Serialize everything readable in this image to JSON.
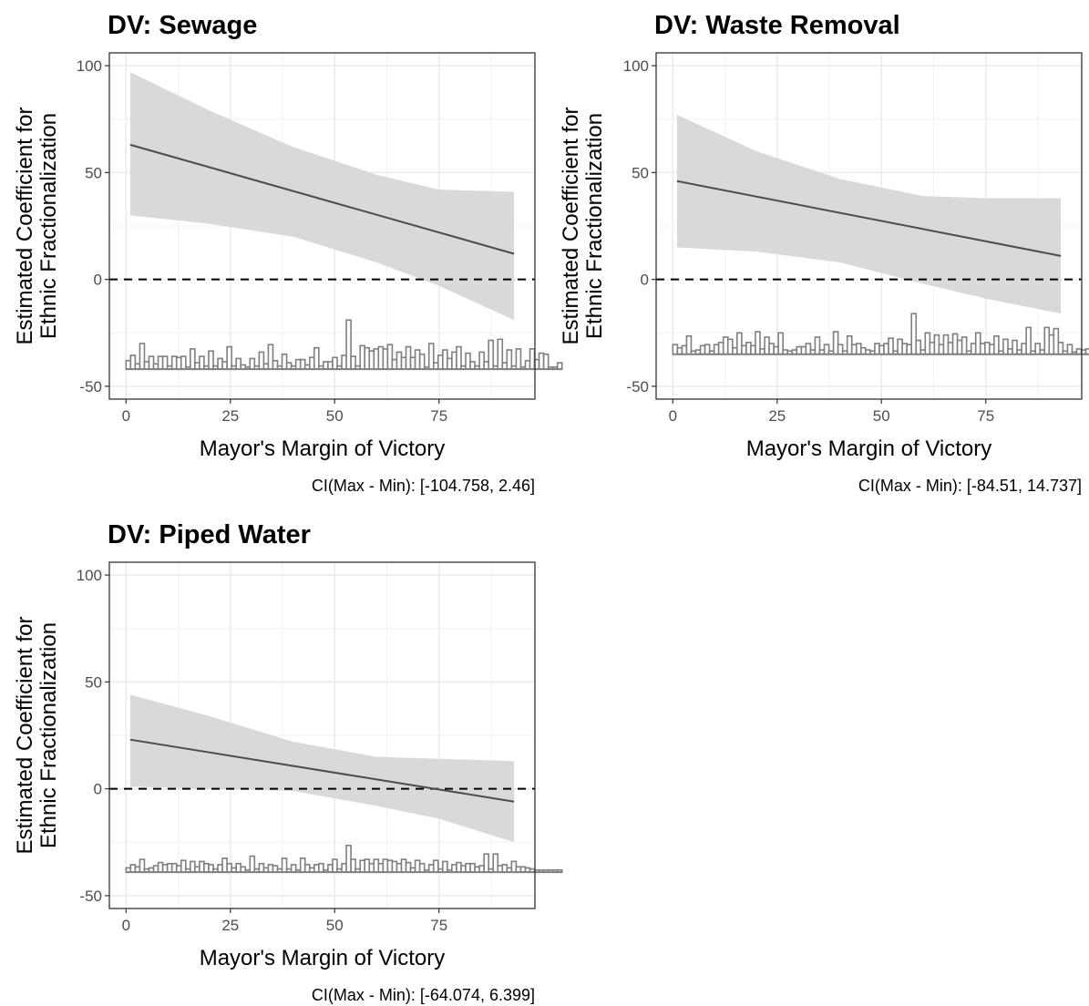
{
  "chart_data": [
    {
      "type": "line",
      "title": "DV: Sewage",
      "xlabel": "Mayor's Margin of Victory",
      "ylabel": [
        "Estimated Coefficient for",
        "Ethnic Fractionalization"
      ],
      "caption": "CI(Max - Min): [-104.758, 2.46]",
      "xlim": [
        -4,
        98
      ],
      "ylim": [
        -56,
        106
      ],
      "xticks": [
        0,
        25,
        50,
        75
      ],
      "xtick_labels": [
        "0",
        "25",
        "50",
        "75"
      ],
      "yticks": [
        -50,
        0,
        50,
        100
      ],
      "ytick_labels": [
        "-50",
        "0",
        "50",
        "100"
      ],
      "grid": true,
      "reference_line": {
        "y": 0,
        "style": "dashed"
      },
      "estimate_line": {
        "x": [
          1,
          93
        ],
        "y": [
          63,
          12
        ]
      },
      "ci_band": {
        "x": [
          1,
          20,
          40,
          60,
          75,
          93
        ],
        "lower": [
          30,
          26,
          20,
          8,
          -3,
          -19
        ],
        "upper": [
          97,
          79,
          62,
          49,
          42,
          41
        ]
      },
      "histogram": {
        "baseline": -42,
        "bin_start": 0,
        "bin_width": 1.1,
        "counts": [
          4.0,
          6.5,
          2.5,
          12.0,
          3.5,
          6.0,
          2.5,
          6.0,
          6.0,
          1.5,
          6.0,
          5.5,
          6.0,
          1.0,
          9.5,
          3.0,
          6.0,
          1.5,
          8.5,
          1.5,
          5.0,
          3.5,
          10.5,
          1.5,
          5.0,
          2.0,
          1.0,
          5.0,
          1.5,
          8.0,
          2.5,
          11.5,
          4.0,
          1.5,
          7.0,
          3.0,
          1.5,
          4.5,
          4.5,
          2.0,
          5.5,
          10.0,
          1.5,
          3.5,
          3.5,
          5.5,
          1.5,
          6.5,
          23.0,
          6.0,
          1.5,
          11.0,
          10.0,
          8.5,
          9.5,
          10.5,
          9.5,
          11.5,
          4.5,
          8.0,
          5.5,
          10.5,
          5.5,
          9.0,
          7.0,
          1.0,
          12.0,
          3.0,
          6.5,
          9.0,
          5.0,
          8.0,
          10.5,
          1.5,
          7.5,
          3.5,
          1.5,
          8.0,
          3.5,
          13.5,
          1.5,
          14.0,
          3.0,
          9.0,
          1.5,
          9.5,
          1.0,
          4.0,
          9.5,
          4.5,
          7.5,
          7.0,
          1.0,
          1.0,
          3.0
        ]
      }
    },
    {
      "type": "line",
      "title": "DV: Waste Removal",
      "xlabel": "Mayor's Margin of Victory",
      "ylabel": [
        "Estimated Coefficient for",
        "Ethnic Fractionalization"
      ],
      "caption": "CI(Max - Min): [-84.51, 14.737]",
      "xlim": [
        -4,
        98
      ],
      "ylim": [
        -56,
        106
      ],
      "xticks": [
        0,
        25,
        50,
        75
      ],
      "xtick_labels": [
        "0",
        "25",
        "50",
        "75"
      ],
      "yticks": [
        -50,
        0,
        50,
        100
      ],
      "ytick_labels": [
        "-50",
        "0",
        "50",
        "100"
      ],
      "grid": true,
      "reference_line": {
        "y": 0,
        "style": "dashed"
      },
      "estimate_line": {
        "x": [
          1,
          93
        ],
        "y": [
          46,
          11
        ]
      },
      "ci_band": {
        "x": [
          1,
          20,
          40,
          60,
          75,
          93
        ],
        "lower": [
          15,
          13,
          8,
          -2,
          -9,
          -16
        ],
        "upper": [
          77,
          60,
          47,
          39,
          38,
          38
        ]
      },
      "histogram": {
        "baseline": -35,
        "bin_start": 0,
        "bin_width": 1.1,
        "counts": [
          4.5,
          3.0,
          4.0,
          8.5,
          1.5,
          2.0,
          4.0,
          4.5,
          1.5,
          4.5,
          5.5,
          8.0,
          7.0,
          3.0,
          10.0,
          4.0,
          5.5,
          4.0,
          10.5,
          2.5,
          8.0,
          5.0,
          3.5,
          10.0,
          2.0,
          1.5,
          2.0,
          3.5,
          3.5,
          5.0,
          2.0,
          8.0,
          2.0,
          4.5,
          1.5,
          10.5,
          4.5,
          1.5,
          8.5,
          4.5,
          5.0,
          3.0,
          2.0,
          1.5,
          5.0,
          4.0,
          5.0,
          7.5,
          1.5,
          7.0,
          5.0,
          4.5,
          19.0,
          6.5,
          2.0,
          10.0,
          5.5,
          9.0,
          4.5,
          9.0,
          5.5,
          9.5,
          6.5,
          8.0,
          1.5,
          5.0,
          10.0,
          5.0,
          5.5,
          4.5,
          8.5,
          1.5,
          7.0,
          2.5,
          6.5,
          2.0,
          5.0,
          12.5,
          1.5,
          5.0,
          2.0,
          12.5,
          9.0,
          12.0,
          5.5,
          1.5,
          4.5,
          1.0,
          2.5,
          2.0,
          2.5,
          1.0,
          1.0,
          1.0,
          2.0
        ]
      }
    },
    {
      "type": "line",
      "title": "DV: Piped Water",
      "xlabel": "Mayor's Margin of Victory",
      "ylabel": [
        "Estimated Coefficient for",
        "Ethnic Fractionalization"
      ],
      "caption": "CI(Max - Min): [-64.074, 6.399]",
      "xlim": [
        -4,
        98
      ],
      "ylim": [
        -56,
        106
      ],
      "xticks": [
        0,
        25,
        50,
        75
      ],
      "xtick_labels": [
        "0",
        "25",
        "50",
        "75"
      ],
      "yticks": [
        -50,
        0,
        50,
        100
      ],
      "ytick_labels": [
        "-50",
        "0",
        "50",
        "100"
      ],
      "grid": true,
      "reference_line": {
        "y": 0,
        "style": "dashed"
      },
      "estimate_line": {
        "x": [
          1,
          93
        ],
        "y": [
          23,
          -6
        ]
      },
      "ci_band": {
        "x": [
          1,
          20,
          40,
          60,
          75,
          93
        ],
        "lower": [
          1,
          0,
          -1,
          -8,
          -14,
          -25
        ],
        "upper": [
          44,
          34,
          22,
          15,
          14,
          13
        ]
      },
      "histogram": {
        "baseline": -39,
        "bin_start": 0,
        "bin_width": 1.1,
        "counts": [
          2.0,
          3.5,
          2.5,
          6.0,
          1.5,
          2.0,
          3.0,
          4.5,
          3.5,
          4.0,
          4.0,
          3.0,
          5.5,
          1.5,
          5.0,
          2.5,
          5.0,
          4.0,
          3.5,
          1.5,
          3.5,
          6.5,
          4.0,
          2.0,
          4.0,
          2.5,
          1.0,
          7.5,
          1.5,
          4.0,
          2.0,
          3.5,
          3.0,
          1.5,
          6.5,
          1.5,
          3.5,
          1.0,
          6.5,
          3.5,
          2.0,
          3.5,
          4.0,
          1.0,
          3.5,
          6.0,
          1.5,
          4.0,
          12.5,
          6.0,
          1.5,
          5.5,
          6.0,
          4.0,
          6.0,
          4.0,
          6.0,
          5.5,
          5.0,
          4.0,
          6.0,
          4.5,
          2.0,
          5.5,
          4.0,
          1.0,
          3.5,
          5.5,
          1.5,
          5.0,
          1.0,
          3.5,
          4.5,
          3.0,
          4.0,
          4.0,
          2.5,
          3.0,
          8.5,
          1.5,
          8.5,
          3.0,
          3.5,
          2.0,
          5.0,
          2.5,
          2.5,
          2.0,
          1.5,
          1.0,
          1.0,
          1.0,
          1.0,
          1.0,
          1.0
        ]
      }
    }
  ]
}
